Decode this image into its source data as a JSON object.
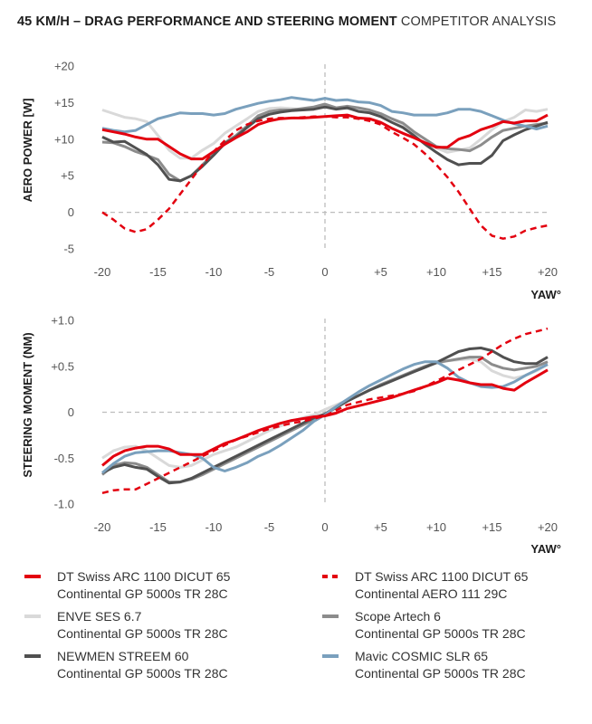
{
  "title": {
    "bold": "45 KM/H – DRAG PERFORMANCE AND STEERING MOMENT",
    "light": "COMPETITOR ANALYSIS"
  },
  "legend": [
    {
      "name": "DT Swiss ARC 1100 DICUT 65",
      "tire": "Continental GP 5000s TR 28C",
      "color": "#e3000f",
      "dashed": false
    },
    {
      "name": "DT Swiss ARC 1100 DICUT 65",
      "tire": "Continental AERO 111 29C",
      "color": "#e3000f",
      "dashed": true
    },
    {
      "name": "ENVE SES 6.7",
      "tire": "Continental GP 5000s TR 28C",
      "color": "#d9d9d9",
      "dashed": false
    },
    {
      "name": "Scope Artech 6",
      "tire": "Continental GP 5000s TR 28C",
      "color": "#8c8c8c",
      "dashed": false
    },
    {
      "name": "NEWMEN STREEM 60",
      "tire": "Continental GP 5000s TR 28C",
      "color": "#505050",
      "dashed": false
    },
    {
      "name": "Mavic COSMIC SLR 65",
      "tire": "Continental GP 5000s TR 28C",
      "color": "#7aa0bd",
      "dashed": false
    }
  ],
  "chart_data": [
    {
      "type": "line",
      "title": "45 KM/H – DRAG PERFORMANCE",
      "xlabel": "YAW°",
      "ylabel": "AERO POWER [W]",
      "xlim": [
        -20,
        20
      ],
      "ylim": [
        -5,
        20
      ],
      "x_ticks": [
        "-20",
        "-15",
        "-10",
        "-5",
        "0",
        "+5",
        "+10",
        "+15",
        "+20"
      ],
      "y_ticks": [
        "+20",
        "+15",
        "+10",
        "+5",
        "0",
        "-5"
      ],
      "grid": "dashed zero lines only",
      "x": [
        -20,
        -19,
        -18,
        -17,
        -16,
        -15,
        -14,
        -13,
        -12,
        -11,
        -10,
        -9,
        -8,
        -7,
        -6,
        -5,
        -4,
        -3,
        -2,
        -1,
        0,
        1,
        2,
        3,
        4,
        5,
        6,
        7,
        8,
        9,
        10,
        11,
        12,
        13,
        14,
        15,
        16,
        17,
        18,
        19,
        20
      ],
      "series": [
        {
          "name": "ENVE SES 6.7 / GP 5000s TR 28C",
          "color": "#d9d9d9",
          "dashed": false,
          "values": [
            14.0,
            13.5,
            13.0,
            12.8,
            12.4,
            10.5,
            8.5,
            7.4,
            7.4,
            8.5,
            9.4,
            10.8,
            11.8,
            12.8,
            13.8,
            14.2,
            14.3,
            14.2,
            14.0,
            14.2,
            14.4,
            14.3,
            14.2,
            14.0,
            13.8,
            13.5,
            12.8,
            12.0,
            11.0,
            10.0,
            8.8,
            8.2,
            8.5,
            8.8,
            10.0,
            11.3,
            12.4,
            13.0,
            14.0,
            13.8,
            14.1
          ]
        },
        {
          "name": "Scope Artech 6 / GP 5000s TR 28C",
          "color": "#8c8c8c",
          "dashed": false,
          "values": [
            9.6,
            9.5,
            9.0,
            8.3,
            7.8,
            7.2,
            5.2,
            4.3,
            5.0,
            6.5,
            8.0,
            9.5,
            10.5,
            11.8,
            13.2,
            13.8,
            14.0,
            14.0,
            14.2,
            14.4,
            14.8,
            14.3,
            14.5,
            14.3,
            14.0,
            13.5,
            12.8,
            12.2,
            11.0,
            10.0,
            9.0,
            8.7,
            8.6,
            8.4,
            9.2,
            10.3,
            11.2,
            11.5,
            11.8,
            12.0,
            12.2
          ]
        },
        {
          "name": "NEWMEN STREEM 60 / GP 5000s TR 28C",
          "color": "#505050",
          "dashed": false,
          "values": [
            10.3,
            9.6,
            9.7,
            8.8,
            7.9,
            6.5,
            4.5,
            4.3,
            5.0,
            6.3,
            7.8,
            9.4,
            10.3,
            11.6,
            12.8,
            13.4,
            13.7,
            13.9,
            14.0,
            14.1,
            14.4,
            14.1,
            14.3,
            13.8,
            13.6,
            13.1,
            12.3,
            11.6,
            10.5,
            9.3,
            8.2,
            7.2,
            6.5,
            6.7,
            6.7,
            7.8,
            9.8,
            10.6,
            11.3,
            11.8,
            12.3
          ]
        },
        {
          "name": "Mavic COSMIC SLR 65 / GP 5000s TR 28C",
          "color": "#7aa0bd",
          "dashed": false,
          "values": [
            11.5,
            11.2,
            11.0,
            11.2,
            12.0,
            12.8,
            13.2,
            13.6,
            13.5,
            13.5,
            13.3,
            13.5,
            14.1,
            14.5,
            14.9,
            15.2,
            15.4,
            15.7,
            15.5,
            15.3,
            15.6,
            15.3,
            15.4,
            15.1,
            15.0,
            14.6,
            13.8,
            13.6,
            13.3,
            13.3,
            13.3,
            13.6,
            14.1,
            14.1,
            13.8,
            13.2,
            12.6,
            12.1,
            11.8,
            11.4,
            11.8
          ]
        },
        {
          "name": "DT Swiss ARC 1100 DICUT 65 / GP 5000s TR 28C",
          "color": "#e3000f",
          "dashed": false,
          "values": [
            11.3,
            11.0,
            10.7,
            10.3,
            10.0,
            10.0,
            9.0,
            8.0,
            7.3,
            7.3,
            8.3,
            9.3,
            10.2,
            11.0,
            12.0,
            12.5,
            12.8,
            12.9,
            12.9,
            13.0,
            13.1,
            13.2,
            13.3,
            12.9,
            12.8,
            12.3,
            11.5,
            10.8,
            10.2,
            9.5,
            8.9,
            8.9,
            10.0,
            10.5,
            11.3,
            11.8,
            12.4,
            12.2,
            12.5,
            12.5,
            13.3
          ]
        },
        {
          "name": "DT Swiss ARC 1100 DICUT 65 / AERO 111 29C",
          "color": "#e3000f",
          "dashed": true,
          "values": [
            0.0,
            -1.0,
            -2.2,
            -2.7,
            -2.3,
            -1.0,
            0.5,
            2.5,
            4.5,
            6.5,
            8.3,
            9.8,
            11.2,
            12.0,
            12.5,
            12.8,
            12.9,
            12.9,
            13.0,
            13.1,
            13.1,
            13.0,
            13.0,
            12.8,
            12.5,
            12.0,
            11.0,
            10.2,
            9.3,
            8.0,
            6.5,
            4.8,
            2.8,
            0.5,
            -1.8,
            -3.2,
            -3.6,
            -3.3,
            -2.5,
            -2.1,
            -1.8
          ]
        }
      ]
    },
    {
      "type": "line",
      "title": "45 KM/H – STEERING MOMENT",
      "xlabel": "YAW°",
      "ylabel": "STEERING MOMENT (NM)",
      "xlim": [
        -20,
        20
      ],
      "ylim": [
        -1.0,
        1.0
      ],
      "x_ticks": [
        "-20",
        "-15",
        "-10",
        "-5",
        "0",
        "+5",
        "+10",
        "+15",
        "+20"
      ],
      "y_ticks": [
        "+1.0",
        "+0.5",
        "0",
        "-0.5",
        "-1.0"
      ],
      "grid": "dashed zero lines only",
      "x": [
        -20,
        -19,
        -18,
        -17,
        -16,
        -15,
        -14,
        -13,
        -12,
        -11,
        -10,
        -9,
        -8,
        -7,
        -6,
        -5,
        -4,
        -3,
        -2,
        -1,
        0,
        1,
        2,
        3,
        4,
        5,
        6,
        7,
        8,
        9,
        10,
        11,
        12,
        13,
        14,
        15,
        16,
        17,
        18,
        19,
        20
      ],
      "series": [
        {
          "name": "ENVE SES 6.7 / GP 5000s TR 28C",
          "color": "#d9d9d9",
          "dashed": false,
          "values": [
            -0.5,
            -0.42,
            -0.38,
            -0.37,
            -0.42,
            -0.5,
            -0.58,
            -0.6,
            -0.58,
            -0.52,
            -0.46,
            -0.42,
            -0.38,
            -0.32,
            -0.26,
            -0.2,
            -0.15,
            -0.1,
            -0.06,
            -0.03,
            0.03,
            0.08,
            0.13,
            0.18,
            0.24,
            0.3,
            0.35,
            0.4,
            0.45,
            0.5,
            0.53,
            0.56,
            0.57,
            0.58,
            0.55,
            0.45,
            0.4,
            0.37,
            0.4,
            0.45,
            0.52
          ]
        },
        {
          "name": "Scope Artech 6 / GP 5000s TR 28C",
          "color": "#8c8c8c",
          "dashed": false,
          "values": [
            -0.68,
            -0.58,
            -0.55,
            -0.56,
            -0.6,
            -0.68,
            -0.76,
            -0.76,
            -0.73,
            -0.68,
            -0.62,
            -0.56,
            -0.5,
            -0.44,
            -0.38,
            -0.32,
            -0.26,
            -0.2,
            -0.14,
            -0.08,
            -0.02,
            0.06,
            0.12,
            0.18,
            0.24,
            0.3,
            0.35,
            0.4,
            0.45,
            0.5,
            0.54,
            0.56,
            0.58,
            0.6,
            0.6,
            0.52,
            0.48,
            0.46,
            0.48,
            0.5,
            0.55
          ]
        },
        {
          "name": "NEWMEN STREEM 60 / GP 5000s TR 28C",
          "color": "#505050",
          "dashed": false,
          "values": [
            -0.66,
            -0.6,
            -0.57,
            -0.6,
            -0.62,
            -0.7,
            -0.77,
            -0.76,
            -0.72,
            -0.66,
            -0.6,
            -0.54,
            -0.48,
            -0.42,
            -0.36,
            -0.3,
            -0.24,
            -0.18,
            -0.12,
            -0.06,
            -0.02,
            0.05,
            0.12,
            0.18,
            0.24,
            0.29,
            0.34,
            0.39,
            0.44,
            0.49,
            0.54,
            0.6,
            0.66,
            0.69,
            0.7,
            0.67,
            0.6,
            0.55,
            0.53,
            0.53,
            0.6
          ]
        },
        {
          "name": "Mavic COSMIC SLR 65 / GP 5000s TR 28C",
          "color": "#7aa0bd",
          "dashed": false,
          "values": [
            -0.66,
            -0.56,
            -0.48,
            -0.44,
            -0.43,
            -0.42,
            -0.42,
            -0.44,
            -0.46,
            -0.5,
            -0.6,
            -0.64,
            -0.6,
            -0.55,
            -0.48,
            -0.43,
            -0.36,
            -0.28,
            -0.2,
            -0.1,
            -0.03,
            0.06,
            0.14,
            0.22,
            0.29,
            0.35,
            0.41,
            0.47,
            0.52,
            0.55,
            0.55,
            0.48,
            0.38,
            0.32,
            0.28,
            0.27,
            0.28,
            0.33,
            0.4,
            0.46,
            0.52
          ]
        },
        {
          "name": "DT Swiss ARC 1100 DICUT 65 / GP 5000s TR 28C",
          "color": "#e3000f",
          "dashed": false,
          "values": [
            -0.58,
            -0.48,
            -0.42,
            -0.39,
            -0.37,
            -0.37,
            -0.4,
            -0.46,
            -0.46,
            -0.46,
            -0.4,
            -0.34,
            -0.3,
            -0.25,
            -0.2,
            -0.16,
            -0.12,
            -0.09,
            -0.07,
            -0.05,
            -0.04,
            -0.01,
            0.04,
            0.07,
            0.1,
            0.13,
            0.16,
            0.2,
            0.24,
            0.28,
            0.32,
            0.37,
            0.35,
            0.32,
            0.3,
            0.3,
            0.26,
            0.24,
            0.32,
            0.39,
            0.46
          ]
        },
        {
          "name": "DT Swiss ARC 1100 DICUT 65 / AERO 111 29C",
          "color": "#e3000f",
          "dashed": true,
          "values": [
            -0.88,
            -0.85,
            -0.84,
            -0.84,
            -0.78,
            -0.72,
            -0.66,
            -0.6,
            -0.54,
            -0.48,
            -0.42,
            -0.36,
            -0.3,
            -0.26,
            -0.22,
            -0.18,
            -0.15,
            -0.12,
            -0.1,
            -0.07,
            -0.04,
            0.02,
            0.08,
            0.11,
            0.14,
            0.16,
            0.18,
            0.2,
            0.23,
            0.28,
            0.34,
            0.4,
            0.46,
            0.52,
            0.58,
            0.66,
            0.74,
            0.8,
            0.85,
            0.88,
            0.91
          ]
        }
      ]
    }
  ]
}
